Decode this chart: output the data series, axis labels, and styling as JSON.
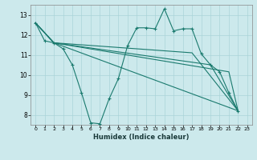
{
  "bg_color": "#cce9ec",
  "line_color": "#1a7a6e",
  "grid_color": "#aad4d8",
  "xlabel": "Humidex (Indice chaleur)",
  "ylim": [
    7.5,
    13.5
  ],
  "xlim": [
    -0.5,
    23.5
  ],
  "yticks": [
    8,
    9,
    10,
    11,
    12,
    13
  ],
  "xticks": [
    0,
    1,
    2,
    3,
    4,
    5,
    6,
    7,
    8,
    9,
    10,
    11,
    12,
    13,
    14,
    15,
    16,
    17,
    18,
    19,
    20,
    21,
    22,
    23
  ],
  "series_main": {
    "x": [
      0,
      1,
      2,
      3,
      4,
      5,
      6,
      7,
      8,
      9,
      10,
      11,
      12,
      13,
      14,
      15,
      16,
      17,
      18,
      19,
      20,
      21,
      22
    ],
    "y": [
      12.6,
      11.7,
      11.6,
      11.3,
      10.5,
      9.1,
      7.6,
      7.55,
      8.8,
      9.8,
      11.45,
      12.35,
      12.35,
      12.3,
      13.3,
      12.2,
      12.3,
      12.3,
      11.05,
      10.5,
      10.15,
      9.1,
      8.2
    ]
  },
  "line1": {
    "x": [
      0,
      2,
      22
    ],
    "y": [
      12.6,
      11.6,
      8.2
    ]
  },
  "line2": {
    "x": [
      0,
      2,
      17,
      22
    ],
    "y": [
      12.6,
      11.6,
      11.1,
      8.2
    ]
  },
  "line3": {
    "x": [
      0,
      2,
      19,
      22
    ],
    "y": [
      12.6,
      11.6,
      10.5,
      8.2
    ]
  },
  "line4": {
    "x": [
      0,
      2,
      21,
      22
    ],
    "y": [
      12.6,
      11.6,
      10.15,
      8.2
    ]
  }
}
